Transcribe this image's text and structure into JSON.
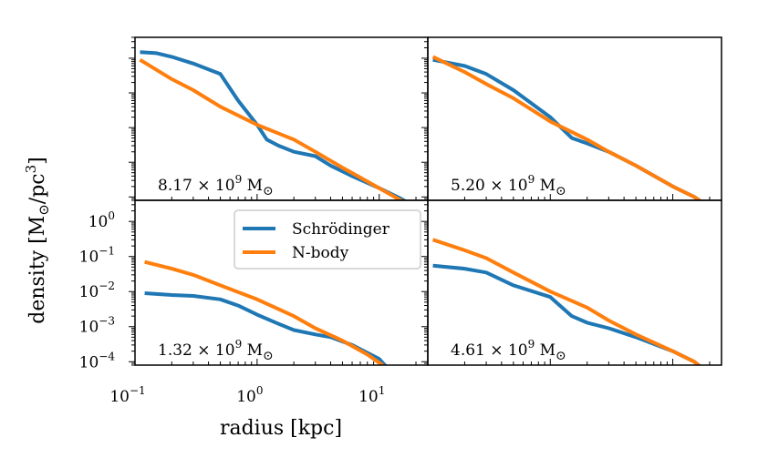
{
  "chart_data": {
    "type": "line",
    "xlabel": "radius [kpc]",
    "ylabel": "density [M⊙/pc³]",
    "xscale": "log",
    "yscale": "log",
    "xlim": [
      0.1,
      25
    ],
    "ylim": [
      8e-05,
      4
    ],
    "x_ticks": [
      {
        "value": 0.1,
        "base": "10",
        "exp": "−1"
      },
      {
        "value": 1,
        "base": "10",
        "exp": "0"
      },
      {
        "value": 10,
        "base": "10",
        "exp": "1"
      }
    ],
    "y_ticks": [
      {
        "value": 1,
        "base": "10",
        "exp": "0"
      },
      {
        "value": 0.1,
        "base": "10",
        "exp": "−1"
      },
      {
        "value": 0.01,
        "base": "10",
        "exp": "−2"
      },
      {
        "value": 0.001,
        "base": "10",
        "exp": "−3"
      },
      {
        "value": 0.0001,
        "base": "10",
        "exp": "−4"
      }
    ],
    "legend": {
      "location": "upper-right of bottom-left panel",
      "entries": [
        {
          "name": "Schrödinger",
          "color": "#1f77b4"
        },
        {
          "name": "N-body",
          "color": "#ff7f0e"
        }
      ]
    },
    "panels": [
      {
        "position": "top-left",
        "annotation": {
          "mantissa": "8.17",
          "times": "×",
          "base": "10",
          "exp": "9",
          "unit": "M",
          "sub": "⊙"
        },
        "series": [
          {
            "name": "Schrödinger",
            "x": [
              0.11,
              0.15,
              0.2,
              0.3,
              0.5,
              0.7,
              1.0,
              1.2,
              1.5,
              2.0,
              3.0,
              4.0,
              6.0,
              10.0,
              15.0,
              20.0
            ],
            "y": [
              1.5,
              1.4,
              1.1,
              0.7,
              0.35,
              0.06,
              0.012,
              0.0045,
              0.003,
              0.002,
              0.0015,
              0.0008,
              0.0004,
              0.00018,
              9e-05,
              5e-05
            ]
          },
          {
            "name": "N-body",
            "x": [
              0.11,
              0.2,
              0.3,
              0.5,
              1.0,
              2.0,
              3.0,
              5.0,
              10.0,
              15.0,
              20.0
            ],
            "y": [
              0.9,
              0.25,
              0.12,
              0.04,
              0.012,
              0.0045,
              0.002,
              0.0007,
              0.00018,
              8e-05,
              5e-05
            ]
          }
        ]
      },
      {
        "position": "top-right",
        "annotation": {
          "mantissa": "5.20",
          "times": "×",
          "base": "10",
          "exp": "9",
          "unit": "M",
          "sub": "⊙"
        },
        "series": [
          {
            "name": "Schrödinger",
            "x": [
              0.11,
              0.2,
              0.3,
              0.5,
              1.0,
              1.5,
              2.0,
              3.0,
              5.0,
              10.0,
              15.0,
              20.0
            ],
            "y": [
              0.9,
              0.6,
              0.35,
              0.12,
              0.02,
              0.005,
              0.0035,
              0.002,
              0.0008,
              0.0002,
              0.0001,
              5e-05
            ]
          },
          {
            "name": "N-body",
            "x": [
              0.11,
              0.2,
              0.3,
              0.5,
              1.0,
              2.0,
              3.0,
              5.0,
              10.0,
              15.0,
              20.0
            ],
            "y": [
              1.1,
              0.4,
              0.18,
              0.07,
              0.015,
              0.0045,
              0.002,
              0.0008,
              0.0002,
              0.0001,
              5e-05
            ]
          }
        ]
      },
      {
        "position": "bottom-left",
        "annotation": {
          "mantissa": "1.32",
          "times": "×",
          "base": "10",
          "exp": "9",
          "unit": "M",
          "sub": "⊙"
        },
        "series": [
          {
            "name": "Schrödinger",
            "x": [
              0.12,
              0.2,
              0.3,
              0.5,
              0.7,
              1.0,
              1.5,
              2.0,
              3.0,
              4.0,
              6.0,
              10.0,
              12.0
            ],
            "y": [
              0.009,
              0.008,
              0.0075,
              0.006,
              0.004,
              0.0022,
              0.0012,
              0.0008,
              0.0006,
              0.0005,
              0.0003,
              0.00012,
              6e-05
            ]
          },
          {
            "name": "N-body",
            "x": [
              0.12,
              0.2,
              0.3,
              0.5,
              1.0,
              2.0,
              3.0,
              5.0,
              8.0,
              12.0
            ],
            "y": [
              0.07,
              0.045,
              0.03,
              0.015,
              0.006,
              0.002,
              0.0009,
              0.0004,
              0.00016,
              6e-05
            ]
          }
        ]
      },
      {
        "position": "bottom-right",
        "annotation": {
          "mantissa": "4.61",
          "times": "×",
          "base": "10",
          "exp": "9",
          "unit": "M",
          "sub": "⊙"
        },
        "series": [
          {
            "name": "Schrödinger",
            "x": [
              0.11,
              0.2,
              0.3,
              0.5,
              1.0,
              1.5,
              2.0,
              3.0,
              5.0,
              10.0,
              15.0,
              18.0
            ],
            "y": [
              0.055,
              0.045,
              0.035,
              0.015,
              0.007,
              0.002,
              0.0013,
              0.0009,
              0.0005,
              0.0002,
              0.0001,
              6e-05
            ]
          },
          {
            "name": "N-body",
            "x": [
              0.11,
              0.2,
              0.3,
              0.5,
              1.0,
              2.0,
              3.0,
              5.0,
              10.0,
              15.0,
              18.0
            ],
            "y": [
              0.3,
              0.15,
              0.09,
              0.035,
              0.01,
              0.0035,
              0.0015,
              0.0006,
              0.0002,
              0.0001,
              6e-05
            ]
          }
        ]
      }
    ]
  }
}
